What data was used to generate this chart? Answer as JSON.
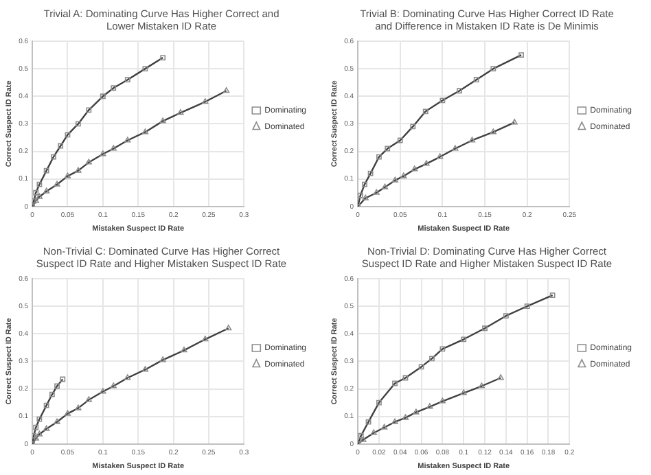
{
  "chart_data": [
    {
      "type": "line",
      "title": "Trivial A: Dominating Curve Has Higher Correct and Lower Mistaken ID Rate",
      "xlabel": "Mistaken Suspect ID Rate",
      "ylabel": "Correct Suspect ID Rate",
      "xlim": [
        0,
        0.3
      ],
      "xticks": [
        0,
        0.05,
        0.1,
        0.15,
        0.2,
        0.25,
        0.3
      ],
      "ylim": [
        0,
        0.6
      ],
      "yticks": [
        0,
        0.1,
        0.2,
        0.3,
        0.4,
        0.5,
        0.6
      ],
      "grid": true,
      "legend": "right",
      "series": [
        {
          "name": "Dominating",
          "color": "#404040",
          "marker": "square",
          "x": [
            0,
            0.002,
            0.005,
            0.01,
            0.02,
            0.03,
            0.04,
            0.05,
            0.065,
            0.08,
            0.1,
            0.115,
            0.135,
            0.16,
            0.185
          ],
          "values": [
            0,
            0.02,
            0.05,
            0.08,
            0.13,
            0.18,
            0.22,
            0.26,
            0.3,
            0.35,
            0.4,
            0.43,
            0.46,
            0.5,
            0.54
          ]
        },
        {
          "name": "Dominated",
          "color": "#404040",
          "marker": "triangle",
          "x": [
            0,
            0.005,
            0.01,
            0.02,
            0.035,
            0.05,
            0.065,
            0.08,
            0.1,
            0.115,
            0.135,
            0.16,
            0.185,
            0.21,
            0.245,
            0.275
          ],
          "values": [
            0,
            0.02,
            0.035,
            0.055,
            0.08,
            0.11,
            0.13,
            0.16,
            0.19,
            0.21,
            0.24,
            0.27,
            0.31,
            0.34,
            0.38,
            0.42
          ]
        }
      ]
    },
    {
      "type": "line",
      "title": "Trivial B: Dominating Curve Has Higher Correct ID Rate and Difference in Mistaken ID Rate is De Minimis",
      "xlabel": "Mistaken Suspect ID Rate",
      "ylabel": "Correct Suspect ID Rate",
      "xlim": [
        0,
        0.25
      ],
      "xticks": [
        0,
        0.05,
        0.1,
        0.15,
        0.2,
        0.25
      ],
      "ylim": [
        0,
        0.6
      ],
      "yticks": [
        0,
        0.1,
        0.2,
        0.3,
        0.4,
        0.5,
        0.6
      ],
      "grid": true,
      "legend": "right",
      "series": [
        {
          "name": "Dominating",
          "color": "#404040",
          "marker": "square",
          "x": [
            0,
            0.003,
            0.008,
            0.015,
            0.025,
            0.035,
            0.05,
            0.065,
            0.08,
            0.1,
            0.12,
            0.14,
            0.16,
            0.193
          ],
          "values": [
            0,
            0.04,
            0.08,
            0.12,
            0.18,
            0.21,
            0.24,
            0.29,
            0.345,
            0.385,
            0.42,
            0.46,
            0.5,
            0.55
          ]
        },
        {
          "name": "Dominated",
          "color": "#404040",
          "marker": "triangle",
          "x": [
            0,
            0.009,
            0.022,
            0.032,
            0.044,
            0.054,
            0.067,
            0.081,
            0.097,
            0.115,
            0.135,
            0.16,
            0.185
          ],
          "values": [
            0,
            0.03,
            0.05,
            0.07,
            0.095,
            0.11,
            0.135,
            0.155,
            0.18,
            0.21,
            0.24,
            0.27,
            0.305
          ]
        }
      ]
    },
    {
      "type": "line",
      "title": "Non-Trivial C: Dominated Curve Has Higher Correct Suspect ID Rate and Higher Mistaken Suspect ID Rate",
      "xlabel": "Mistaken Suspect ID Rate",
      "ylabel": "Correct Suspect ID Rate",
      "xlim": [
        0,
        0.3
      ],
      "xticks": [
        0,
        0.05,
        0.1,
        0.15,
        0.2,
        0.25,
        0.3
      ],
      "ylim": [
        0,
        0.6
      ],
      "yticks": [
        0,
        0.1,
        0.2,
        0.3,
        0.4,
        0.5,
        0.6
      ],
      "grid": true,
      "legend": "right",
      "series": [
        {
          "name": "Dominating",
          "color": "#404040",
          "marker": "square",
          "x": [
            0,
            0.002,
            0.005,
            0.01,
            0.02,
            0.028,
            0.035,
            0.043
          ],
          "values": [
            0,
            0.03,
            0.06,
            0.09,
            0.14,
            0.18,
            0.21,
            0.235
          ]
        },
        {
          "name": "Dominated",
          "color": "#404040",
          "marker": "triangle",
          "x": [
            0,
            0.005,
            0.01,
            0.02,
            0.035,
            0.05,
            0.065,
            0.08,
            0.1,
            0.115,
            0.135,
            0.16,
            0.185,
            0.215,
            0.245,
            0.278
          ],
          "values": [
            0,
            0.02,
            0.035,
            0.055,
            0.08,
            0.11,
            0.13,
            0.16,
            0.19,
            0.21,
            0.24,
            0.27,
            0.305,
            0.34,
            0.38,
            0.42
          ]
        }
      ]
    },
    {
      "type": "line",
      "title": "Non-Trivial D: Dominating Curve Has Higher Correct Suspect ID Rate and Higher Mistaken Suspect ID Rate",
      "xlabel": "Mistaken Suspect ID Rate",
      "ylabel": "Correct Suspect ID Rate",
      "xlim": [
        0,
        0.2
      ],
      "xticks": [
        0,
        0.02,
        0.04,
        0.06,
        0.08,
        0.1,
        0.12,
        0.14,
        0.16,
        0.18,
        0.2
      ],
      "ylim": [
        0,
        0.6
      ],
      "yticks": [
        0,
        0.1,
        0.2,
        0.3,
        0.4,
        0.5,
        0.6
      ],
      "grid": true,
      "legend": "right",
      "series": [
        {
          "name": "Dominating",
          "color": "#404040",
          "marker": "square",
          "x": [
            0,
            0.003,
            0.01,
            0.02,
            0.035,
            0.045,
            0.06,
            0.07,
            0.08,
            0.1,
            0.12,
            0.14,
            0.16,
            0.184
          ],
          "values": [
            0,
            0.03,
            0.08,
            0.15,
            0.22,
            0.24,
            0.28,
            0.31,
            0.345,
            0.38,
            0.42,
            0.465,
            0.5,
            0.54
          ]
        },
        {
          "name": "Dominated",
          "color": "#404040",
          "marker": "triangle",
          "x": [
            0,
            0.005,
            0.015,
            0.025,
            0.035,
            0.045,
            0.055,
            0.068,
            0.08,
            0.1,
            0.117,
            0.135
          ],
          "values": [
            0,
            0.015,
            0.04,
            0.06,
            0.08,
            0.095,
            0.115,
            0.135,
            0.155,
            0.185,
            0.21,
            0.24
          ]
        }
      ]
    }
  ]
}
